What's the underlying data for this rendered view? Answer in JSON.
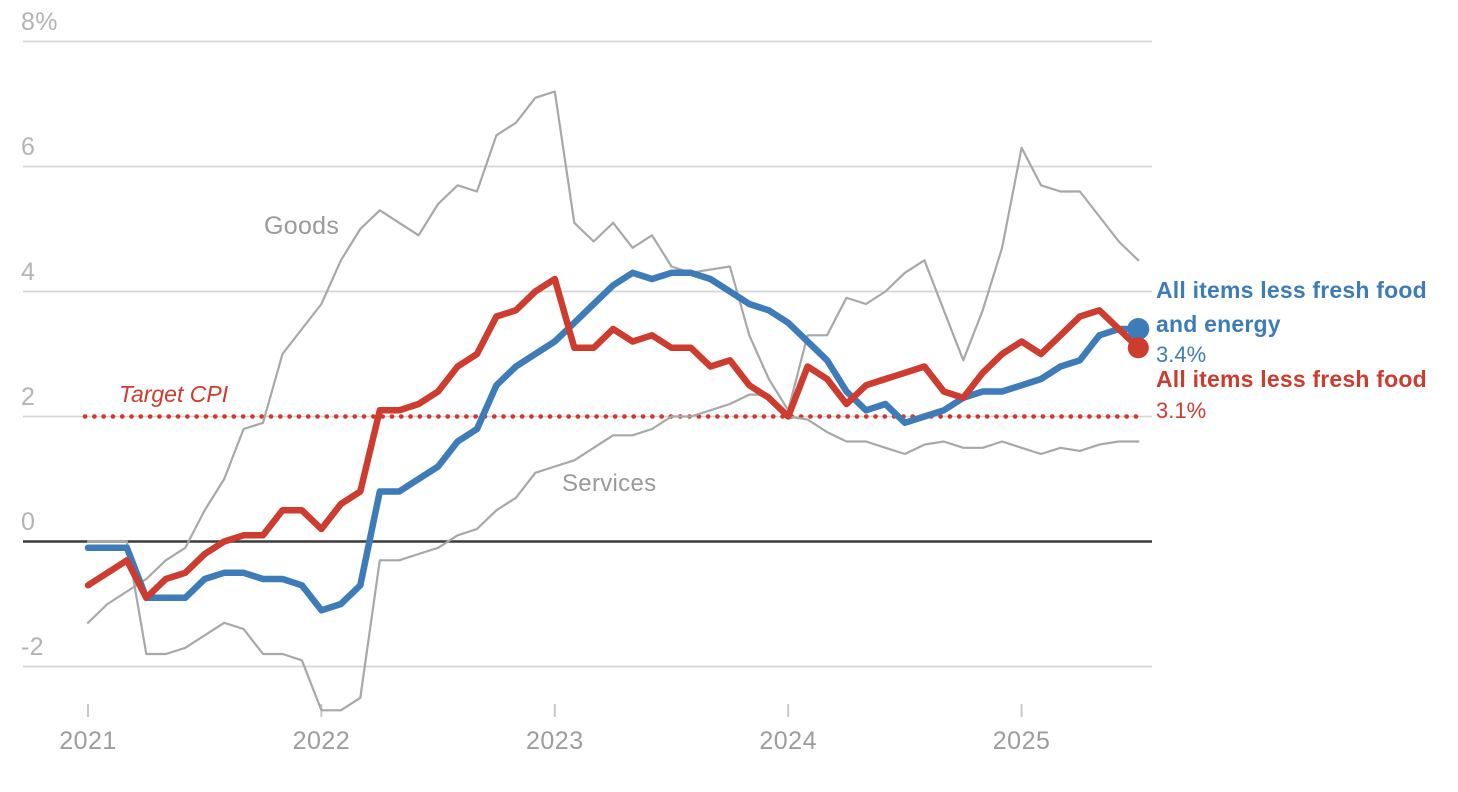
{
  "chart_data": {
    "type": "line",
    "title": "",
    "x_start": "2021-01",
    "x_frequency": "monthly",
    "n_points": 55,
    "x_axis": {
      "tick_labels": [
        "2021",
        "2022",
        "2023",
        "2024",
        "2025"
      ]
    },
    "y_axis": {
      "unit": "percent",
      "ticks": [
        {
          "label": "8%",
          "value": 8
        },
        {
          "label": "6",
          "value": 6
        },
        {
          "label": "4",
          "value": 4
        },
        {
          "label": "2",
          "value": 2
        },
        {
          "label": "0",
          "value": 0
        },
        {
          "label": "-2",
          "value": -2
        }
      ],
      "ylim": [
        -3.1,
        8.6
      ]
    },
    "target_line": {
      "label": "Target CPI",
      "value": 2,
      "style": "dotted",
      "color": "#d0382d"
    },
    "labels": {
      "goods": "Goods",
      "services": "Services"
    },
    "legend": {
      "blue_name_line1": "All items less fresh food",
      "blue_name_line2": "and energy",
      "blue_value": "3.4%",
      "red_name": "All items less fresh food",
      "red_value": "3.1%"
    },
    "series": [
      {
        "id": "goods",
        "name": "Goods",
        "color": "#a8a8a8",
        "width": 2.2,
        "end_dot": false,
        "values": [
          -1.3,
          -1.0,
          -0.8,
          -0.6,
          -0.3,
          -0.1,
          0.5,
          1.0,
          1.8,
          1.9,
          3.0,
          3.4,
          3.8,
          4.5,
          5.0,
          5.3,
          5.1,
          4.9,
          5.4,
          5.7,
          5.6,
          6.5,
          6.7,
          7.1,
          7.2,
          5.1,
          4.8,
          5.1,
          4.7,
          4.9,
          4.4,
          4.3,
          4.35,
          4.4,
          3.3,
          2.6,
          2.1,
          3.3,
          3.3,
          3.9,
          3.8,
          4.0,
          4.3,
          4.5,
          3.7,
          2.9,
          3.7,
          4.7,
          6.3,
          5.7,
          5.6,
          5.6,
          5.2,
          4.8,
          4.5
        ]
      },
      {
        "id": "services",
        "name": "Services",
        "color": "#a8a8a8",
        "width": 2.2,
        "end_dot": false,
        "values": [
          0.0,
          0.0,
          0.0,
          -1.8,
          -1.8,
          -1.7,
          -1.5,
          -1.3,
          -1.4,
          -1.8,
          -1.8,
          -1.9,
          -2.7,
          -2.7,
          -2.5,
          -0.3,
          -0.3,
          -0.2,
          -0.1,
          0.1,
          0.2,
          0.5,
          0.7,
          1.1,
          1.2,
          1.3,
          1.5,
          1.7,
          1.7,
          1.8,
          2.0,
          2.0,
          2.1,
          2.2,
          2.35,
          2.35,
          2.0,
          1.95,
          1.75,
          1.6,
          1.6,
          1.5,
          1.4,
          1.55,
          1.6,
          1.5,
          1.5,
          1.6,
          1.5,
          1.4,
          1.5,
          1.45,
          1.55,
          1.6,
          1.6
        ]
      },
      {
        "id": "corecore",
        "name": "All items less fresh food and energy",
        "color": "#3e7cb9",
        "width": 6.5,
        "end_dot": true,
        "latest_value": "3.4%",
        "values": [
          -0.1,
          -0.1,
          -0.1,
          -0.9,
          -0.9,
          -0.9,
          -0.6,
          -0.5,
          -0.5,
          -0.6,
          -0.6,
          -0.7,
          -1.1,
          -1.0,
          -0.7,
          0.8,
          0.8,
          1.0,
          1.2,
          1.6,
          1.8,
          2.5,
          2.8,
          3.0,
          3.2,
          3.5,
          3.8,
          4.1,
          4.3,
          4.2,
          4.3,
          4.3,
          4.2,
          4.0,
          3.8,
          3.7,
          3.5,
          3.2,
          2.9,
          2.4,
          2.1,
          2.2,
          1.9,
          2.0,
          2.1,
          2.3,
          2.4,
          2.4,
          2.5,
          2.6,
          2.8,
          2.9,
          3.3,
          3.4,
          3.4
        ]
      },
      {
        "id": "core",
        "name": "All items less fresh food",
        "color": "#ce3b2f",
        "width": 6.5,
        "end_dot": true,
        "latest_value": "3.1%",
        "values": [
          -0.7,
          -0.5,
          -0.3,
          -0.9,
          -0.6,
          -0.5,
          -0.2,
          0.0,
          0.1,
          0.1,
          0.5,
          0.5,
          0.2,
          0.6,
          0.8,
          2.1,
          2.1,
          2.2,
          2.4,
          2.8,
          3.0,
          3.6,
          3.7,
          4.0,
          4.2,
          3.1,
          3.1,
          3.4,
          3.2,
          3.3,
          3.1,
          3.1,
          2.8,
          2.9,
          2.5,
          2.3,
          2.0,
          2.8,
          2.6,
          2.2,
          2.5,
          2.6,
          2.7,
          2.8,
          2.4,
          2.3,
          2.7,
          3.0,
          3.2,
          3.0,
          3.3,
          3.6,
          3.7,
          3.4,
          3.1
        ]
      }
    ],
    "style": {
      "grid_color": "#d6d6d6",
      "zero_line_color": "#3c3c3c",
      "tick_color": "#c9c9c9",
      "blue": "#3e7cb9",
      "red": "#ce3b2f",
      "gray": "#a8a8a8"
    }
  }
}
